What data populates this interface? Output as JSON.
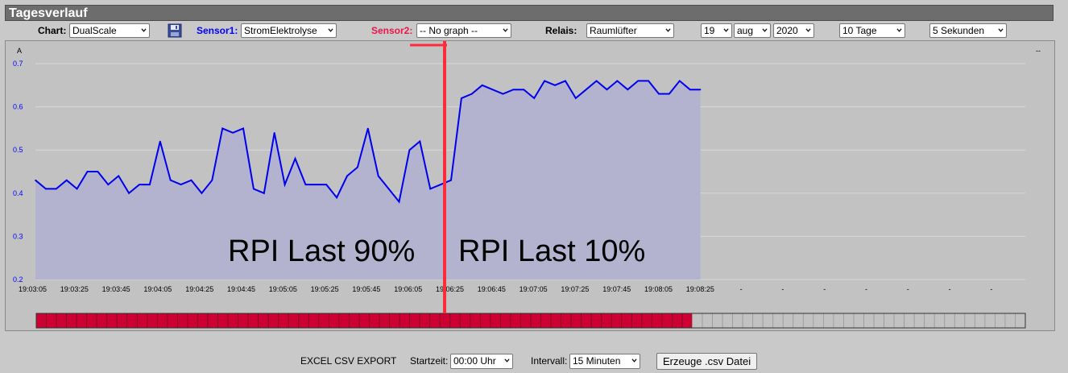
{
  "title": "Tagesverlauf",
  "controls": {
    "chart_label": "Chart:",
    "chart_value": "DualScale",
    "sensor1_label": "Sensor1:",
    "sensor1_value": "StromElektrolyse",
    "sensor2_label": "Sensor2:",
    "sensor2_value": "-- No graph --",
    "relais_label": "Relais:",
    "relais_value": "Raumlüfter",
    "day_value": "19",
    "month_value": "aug",
    "year_value": "2020",
    "range_value": "10 Tage",
    "interval_value": "5 Sekunden"
  },
  "colors": {
    "sensor1": "#0000ff",
    "sensor2": "#e8174a",
    "line": "#0000ee",
    "fill": "#b3b3cf",
    "relay_on": "#cc0033",
    "relay_off": "#c2c2c2",
    "overlay_red": "#ff2a3a"
  },
  "chart_data": {
    "type": "area",
    "y_unit": "A",
    "right_axis_label": "--",
    "ylim": [
      0.2,
      0.7
    ],
    "yticks": [
      "0.7",
      "0.6",
      "0.5",
      "0.4",
      "0.3",
      "0.2"
    ],
    "x_tick_labels": [
      "19:03:05",
      "19:03:25",
      "19:03:45",
      "19:04:05",
      "19:04:25",
      "19:04:45",
      "19:05:05",
      "19:05:25",
      "19:05:45",
      "19:06:05",
      "19:06:25",
      "19:06:45",
      "19:07:05",
      "19:07:25",
      "19:07:45",
      "19:08:05",
      "19:08:25",
      "-",
      "-",
      "-",
      "-",
      "-",
      "-",
      "-"
    ],
    "grid": true,
    "series": [
      {
        "values": [
          0.43,
          0.41,
          0.41,
          0.43,
          0.41,
          0.45,
          0.45,
          0.42,
          0.44,
          0.4,
          0.42,
          0.42,
          0.52,
          0.43,
          0.42,
          0.43,
          0.4,
          0.43,
          0.55,
          0.54,
          0.55,
          0.41,
          0.4,
          0.54,
          0.42,
          0.48,
          0.42,
          0.42,
          0.42,
          0.39,
          0.44,
          0.46,
          0.55,
          0.44,
          0.41,
          0.38,
          0.5,
          0.52,
          0.41,
          0.42,
          0.43,
          0.62,
          0.63,
          0.65,
          0.64,
          0.63,
          0.64,
          0.64,
          0.62,
          0.66,
          0.65,
          0.66,
          0.62,
          0.64,
          0.66,
          0.64,
          0.66,
          0.64,
          0.66,
          0.66,
          0.63,
          0.63,
          0.66,
          0.64,
          0.64
        ]
      }
    ],
    "annotations": [
      "RPI Last 90%",
      "RPI Last 10%"
    ],
    "relay_bar": {
      "on_cells": 65,
      "total_cells": 98
    }
  },
  "export": {
    "label": "EXCEL CSV EXPORT",
    "start_label": "Startzeit:",
    "start_value": "00:00 Uhr",
    "interval_label": "Intervall:",
    "interval_value": "15 Minuten",
    "button_label": "Erzeuge .csv Datei"
  }
}
